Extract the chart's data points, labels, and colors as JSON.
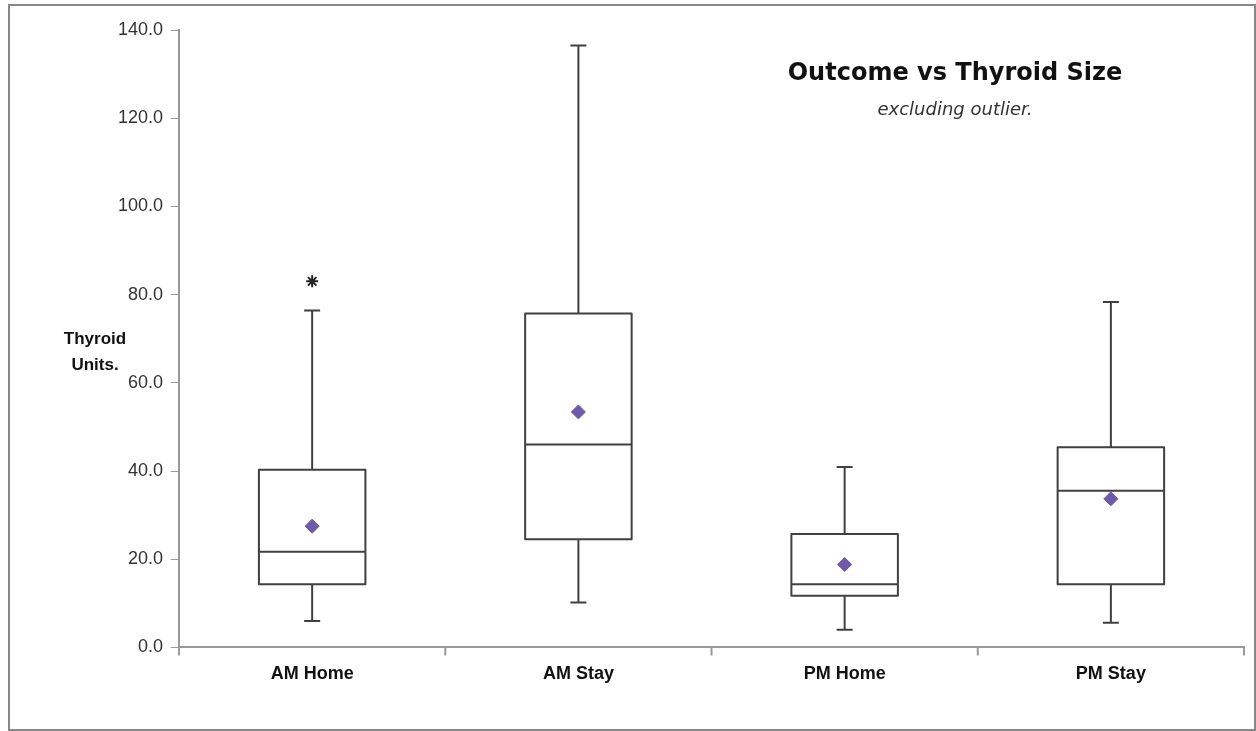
{
  "chart_data": {
    "type": "box",
    "title": "Outcome vs Thyroid Size",
    "subtitle": "excluding outlier.",
    "ylabel": "Thyroid Units.",
    "categories": [
      "AM Home",
      "AM Stay",
      "PM Home",
      "PM Stay"
    ],
    "color": "#404040",
    "boxes": [
      {
        "low": 6.0,
        "q1": 14.3,
        "median": 21.7,
        "q3": 40.3,
        "high": 76.4,
        "mean": 27.5,
        "outliers": [
          83.0
        ]
      },
      {
        "low": 10.2,
        "q1": 24.5,
        "median": 46.0,
        "q3": 75.7,
        "high": 136.5,
        "mean": 53.4
      },
      {
        "low": 4.0,
        "q1": 11.7,
        "median": 14.3,
        "q3": 25.7,
        "high": 40.9,
        "mean": 18.8
      },
      {
        "low": 5.6,
        "q1": 14.3,
        "median": 35.5,
        "q3": 45.4,
        "high": 78.3,
        "mean": 33.7
      }
    ],
    "ylim": [
      0,
      140
    ],
    "yticks": [
      {
        "value": 0,
        "label": "0.0"
      },
      {
        "value": 20,
        "label": "20.0"
      },
      {
        "value": 40,
        "label": "40.0"
      },
      {
        "value": 60,
        "label": "60.0"
      },
      {
        "value": 80,
        "label": "80.0"
      },
      {
        "value": 100,
        "label": "100.0"
      },
      {
        "value": 120,
        "label": "120.0"
      },
      {
        "value": 140,
        "label": "140.0"
      }
    ],
    "grid": false,
    "legend": false
  }
}
